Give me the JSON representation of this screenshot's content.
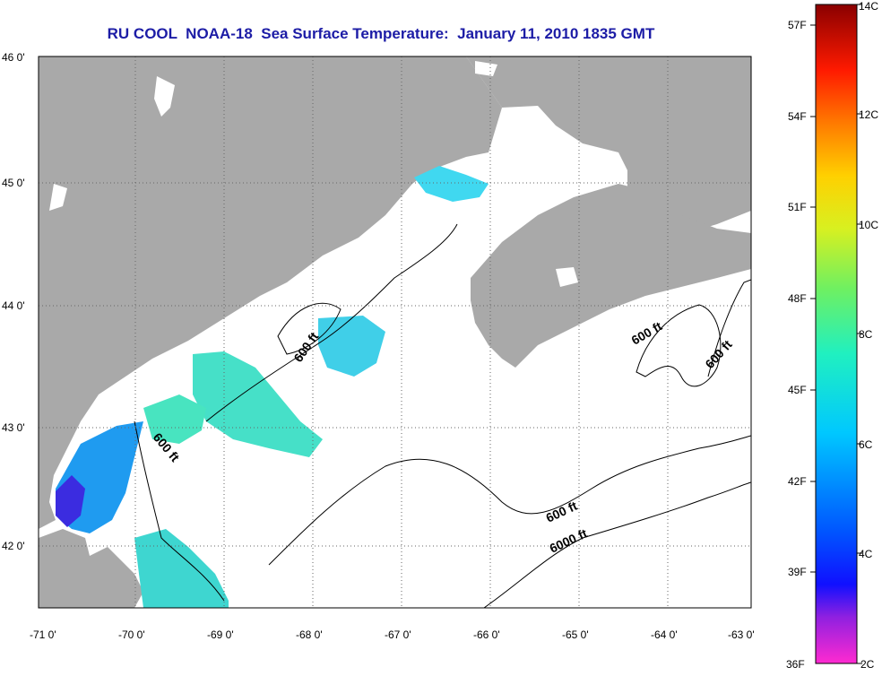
{
  "map": {
    "title": "RU COOL  NOAA-18  Sea Surface Temperature:  January 11, 2010 1835 GMT",
    "lat_labels": [
      "46 0'",
      "45 0'",
      "44 0'",
      "43 0'",
      "42 0'"
    ],
    "lon_labels": [
      "-71 0'",
      "-70 0'",
      "-69 0'",
      "-68 0'",
      "-67 0'",
      "-66 0'",
      "-65 0'",
      "-64 0'",
      "-63 0'"
    ],
    "contour_labels": [
      "600 ft",
      "600 ft",
      "600 ft",
      "600 ft",
      "600 ft",
      "6000 ft"
    ],
    "colors": {
      "land": "#a9a9a9",
      "water": "#ffffff",
      "title": "#1c1ca6"
    }
  },
  "colorbar": {
    "fahrenheit_labels": [
      "57F",
      "54F",
      "51F",
      "48F",
      "45F",
      "42F",
      "39F",
      "36F"
    ],
    "celsius_labels": [
      "14C",
      "12C",
      "10C",
      "8C",
      "6C",
      "4C",
      "2C"
    ],
    "range_c": [
      2,
      14
    ]
  }
}
